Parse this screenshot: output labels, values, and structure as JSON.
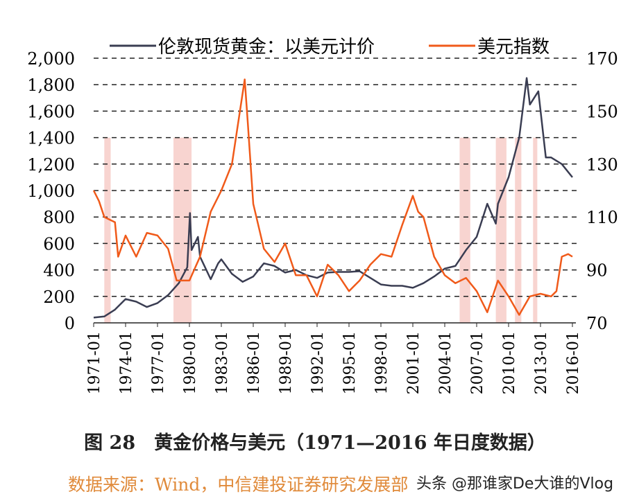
{
  "chart_data": {
    "type": "line",
    "legend_position": "top",
    "grid": "horizontal dashed",
    "xlim": [
      1971,
      2016.5
    ],
    "ylim_left": [
      0,
      2000
    ],
    "ylim_right": [
      70,
      170
    ],
    "x_ticks": [
      "1971-01",
      "1974-01",
      "1977-01",
      "1980-01",
      "1983-01",
      "1986-01",
      "1989-01",
      "1992-01",
      "1995-01",
      "1998-01",
      "2001-01",
      "2004-01",
      "2007-01",
      "2010-01",
      "2013-01",
      "2016-01"
    ],
    "y_ticks_left": [
      "0",
      "200",
      "400",
      "600",
      "800",
      "1,000",
      "1,200",
      "1,400",
      "1,600",
      "1,800",
      "2,000"
    ],
    "y_ticks_right": [
      "70",
      "90",
      "110",
      "130",
      "150",
      "170"
    ],
    "shaded_periods": [
      [
        1972.0,
        1972.6
      ],
      [
        1978.5,
        1980.2
      ],
      [
        2005.4,
        2006.4
      ],
      [
        2008.8,
        2009.8
      ],
      [
        2010.6,
        2011.2
      ],
      [
        2012.3,
        2012.7
      ]
    ],
    "series": [
      {
        "name": "伦敦现货黄金：以美元计价",
        "axis": "left",
        "color": "#3a3d52",
        "x": [
          1971,
          1972,
          1973,
          1974,
          1975,
          1976,
          1977,
          1978,
          1979,
          1979.8,
          1980.05,
          1980.2,
          1980.8,
          1981,
          1982,
          1982.7,
          1983,
          1984,
          1985,
          1986,
          1987,
          1988,
          1989,
          1990,
          1991,
          1992,
          1993,
          1994,
          1995,
          1996,
          1997,
          1998,
          1999,
          2000,
          2001,
          2002,
          2003,
          2004,
          2005,
          2006,
          2007,
          2008,
          2008.8,
          2009,
          2010,
          2011,
          2011.7,
          2012,
          2012.8,
          2013.5,
          2014,
          2015,
          2016
        ],
        "y": [
          40,
          48,
          100,
          180,
          160,
          120,
          150,
          210,
          300,
          420,
          830,
          550,
          650,
          500,
          330,
          450,
          480,
          370,
          310,
          350,
          450,
          430,
          380,
          400,
          360,
          340,
          380,
          385,
          385,
          390,
          340,
          290,
          280,
          280,
          265,
          300,
          350,
          410,
          430,
          550,
          650,
          900,
          750,
          900,
          1100,
          1400,
          1850,
          1650,
          1750,
          1250,
          1250,
          1200,
          1100
        ]
      },
      {
        "name": "美元指数",
        "axis": "right",
        "color": "#f05a1a",
        "x": [
          1971,
          1971.5,
          1972,
          1973,
          1973.3,
          1974,
          1975,
          1976,
          1977,
          1978,
          1978.8,
          1980,
          1981,
          1982,
          1983,
          1984,
          1985.2,
          1985.5,
          1986,
          1987,
          1988,
          1989,
          1990,
          1991,
          1992,
          1993,
          1994,
          1995,
          1996,
          1997,
          1998,
          1999,
          2000,
          2001,
          2001.5,
          2002,
          2003,
          2004,
          2005,
          2006,
          2007,
          2008,
          2009,
          2010,
          2011,
          2012,
          2013,
          2014,
          2014.5,
          2015,
          2015.6,
          2016
        ],
        "y": [
          120,
          116,
          110,
          108,
          95,
          103,
          95,
          104,
          103,
          98,
          86,
          86,
          95,
          112,
          120,
          130,
          162,
          145,
          115,
          98,
          93,
          100,
          88,
          88,
          80,
          92,
          88,
          82,
          86,
          92,
          96,
          95,
          107,
          118,
          112,
          110,
          95,
          88,
          85,
          87,
          82,
          74,
          86,
          80,
          73,
          80,
          81,
          80,
          82,
          95,
          96,
          95
        ]
      }
    ]
  },
  "caption": "图 28　黄金价格与美元（1971—2016 年日度数据）",
  "source": "数据来源：Wind，中信建投证券研究发展部",
  "watermark": "头条 @那谁家De大谁的Vlog"
}
